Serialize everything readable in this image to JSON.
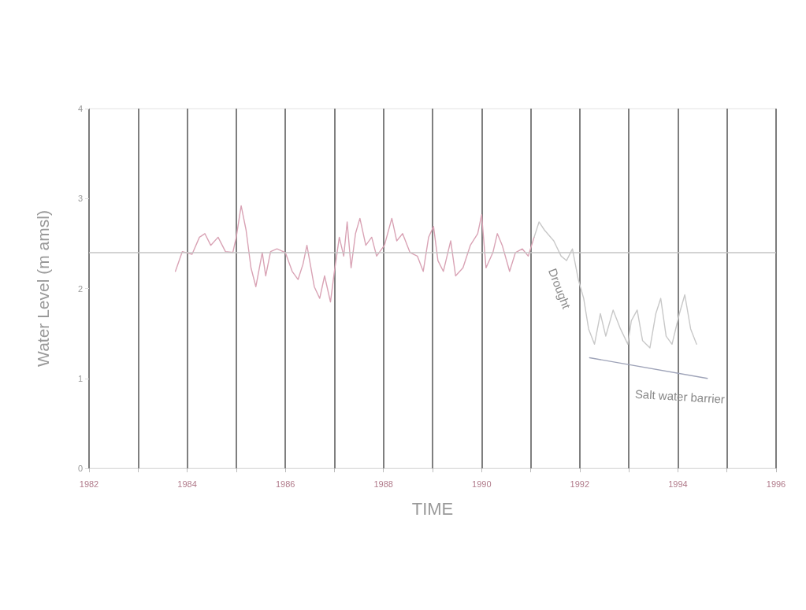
{
  "chart_data": {
    "type": "line",
    "xlabel": "TIME",
    "ylabel": "Water Level (m amsl)",
    "xlim": [
      1982,
      1996
    ],
    "ylim": [
      0,
      4
    ],
    "xticks": [
      1982,
      {
        "value": 1983,
        "label": null
      },
      1984,
      {
        "value": 1985,
        "label": null
      },
      1986,
      {
        "value": 1987,
        "label": null
      },
      1988,
      {
        "value": 1989,
        "label": null
      },
      1990,
      {
        "value": 1991,
        "label": null
      },
      1992,
      {
        "value": 1993,
        "label": null
      },
      1994,
      {
        "value": 1995,
        "label": null
      },
      1996
    ],
    "yticks": [
      0,
      1,
      2,
      3,
      4
    ],
    "grid": "x",
    "marker": "none",
    "line_style": "solid",
    "series": [
      {
        "color": "#d9a3b5",
        "x": [
          1983.76,
          1983.9,
          1984.1,
          1984.25,
          1984.36,
          1984.48,
          1984.63,
          1984.78,
          1984.93,
          1985.0,
          1985.1,
          1985.2,
          1985.3,
          1985.4,
          1985.53,
          1985.6,
          1985.7,
          1985.83,
          1986.0,
          1986.14,
          1986.26,
          1986.36,
          1986.44,
          1986.59,
          1986.7,
          1986.8,
          1986.92,
          1987.0,
          1987.1,
          1987.19,
          1987.26,
          1987.34,
          1987.43,
          1987.52,
          1987.64,
          1987.76,
          1987.86,
          1988.02,
          1988.17,
          1988.27,
          1988.39,
          1988.54,
          1988.69,
          1988.81,
          1988.92,
          1989.02,
          1989.11,
          1989.22,
          1989.37,
          1989.47,
          1989.62,
          1989.77,
          1989.92,
          1990.0,
          1990.09,
          1990.23,
          1990.32,
          1990.42,
          1990.57,
          1990.69,
          1990.83,
          1990.95,
          1991.07
        ],
        "values": [
          2.19,
          2.41,
          2.38,
          2.57,
          2.61,
          2.48,
          2.57,
          2.41,
          2.4,
          2.57,
          2.92,
          2.65,
          2.23,
          2.02,
          2.4,
          2.14,
          2.41,
          2.44,
          2.4,
          2.19,
          2.1,
          2.27,
          2.48,
          2.02,
          1.89,
          2.14,
          1.85,
          2.19,
          2.57,
          2.36,
          2.74,
          2.23,
          2.61,
          2.78,
          2.48,
          2.57,
          2.36,
          2.48,
          2.78,
          2.53,
          2.61,
          2.4,
          2.36,
          2.19,
          2.57,
          2.69,
          2.31,
          2.19,
          2.53,
          2.14,
          2.23,
          2.48,
          2.61,
          2.82,
          2.23,
          2.4,
          2.61,
          2.48,
          2.19,
          2.4,
          2.44,
          2.36,
          2.57
        ]
      },
      {
        "color": "#c8c8c8",
        "x": [
          1991.07,
          1991.17,
          1991.28,
          1991.47,
          1991.62,
          1991.73,
          1991.85,
          1991.97,
          1992.08,
          1992.18,
          1992.3,
          1992.42,
          1992.53,
          1992.68,
          1992.83,
          1992.98,
          1993.05,
          1993.17,
          1993.28,
          1993.43,
          1993.55,
          1993.65,
          1993.76,
          1993.88,
          1994.03,
          1994.14,
          1994.26,
          1994.38
        ],
        "values": [
          2.57,
          2.74,
          2.65,
          2.53,
          2.36,
          2.31,
          2.44,
          2.1,
          1.89,
          1.55,
          1.38,
          1.72,
          1.47,
          1.76,
          1.55,
          1.38,
          1.64,
          1.76,
          1.42,
          1.34,
          1.72,
          1.89,
          1.47,
          1.38,
          1.72,
          1.93,
          1.55,
          1.38
        ]
      },
      {
        "color": "#9ea3b8",
        "x": [
          1992.2,
          1994.6
        ],
        "values": [
          1.23,
          1.0
        ]
      }
    ],
    "ref_lines": [
      {
        "axis": "y",
        "value": 2.4,
        "color": "#c4c4c4"
      }
    ],
    "annotations": [
      "Drought",
      "Salt water barrier"
    ]
  }
}
